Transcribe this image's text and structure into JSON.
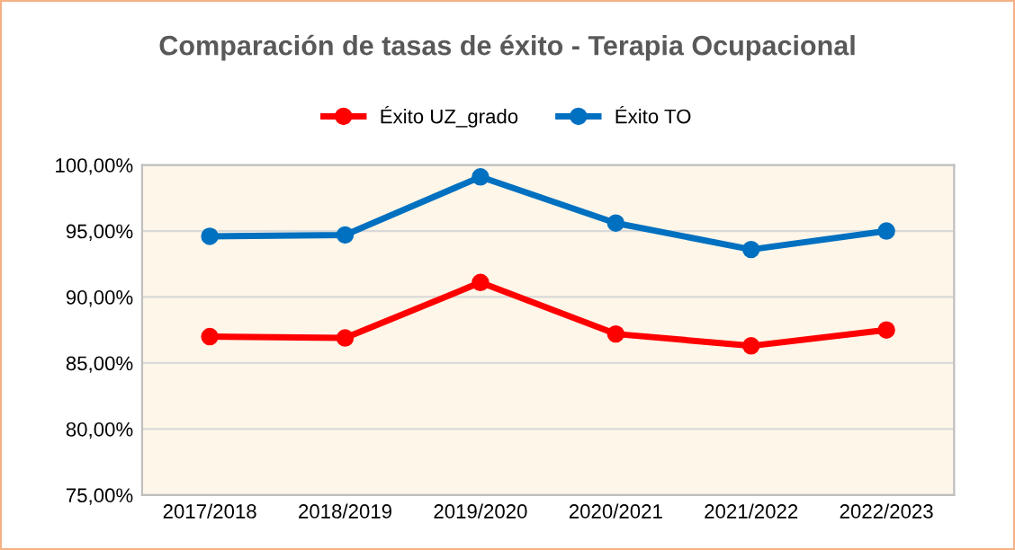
{
  "chart_data": {
    "type": "line",
    "title": "Comparación de tasas de éxito - Terapia Ocupacional",
    "categories": [
      "2017/2018",
      "2018/2019",
      "2019/2020",
      "2020/2021",
      "2021/2022",
      "2022/2023"
    ],
    "series": [
      {
        "name": "Éxito UZ_grado",
        "color": "#ff0000",
        "values": [
          87.0,
          86.9,
          91.1,
          87.2,
          86.3,
          87.5
        ]
      },
      {
        "name": "Éxito TO",
        "color": "#0070c0",
        "values": [
          94.6,
          94.7,
          99.1,
          95.6,
          93.6,
          95.0
        ]
      }
    ],
    "ylim": [
      75,
      100
    ],
    "yticks": [
      {
        "value": 75,
        "label": "75,00%"
      },
      {
        "value": 80,
        "label": "80,00%"
      },
      {
        "value": 85,
        "label": "85,00%"
      },
      {
        "value": 90,
        "label": "90,00%"
      },
      {
        "value": 95,
        "label": "95,00%"
      },
      {
        "value": 100,
        "label": "100,00%"
      }
    ],
    "grid": "y",
    "legend": "top",
    "marker": "circle",
    "line_style": "solid"
  }
}
